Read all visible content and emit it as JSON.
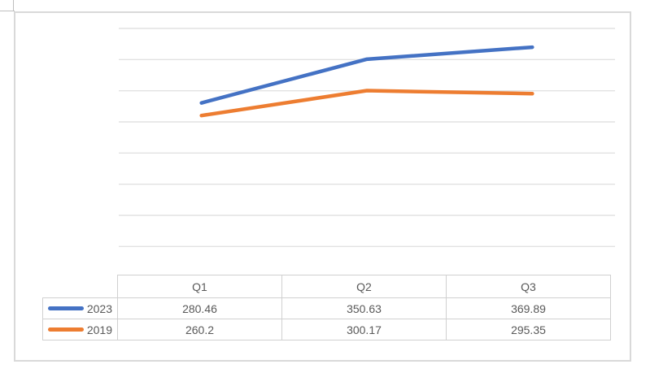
{
  "chart_data": {
    "type": "line",
    "title": "",
    "xlabel": "",
    "ylabel": "",
    "categories": [
      "Q1",
      "Q2",
      "Q3"
    ],
    "series": [
      {
        "name": "2023",
        "color": "#4472C4",
        "values": [
          280.46,
          350.63,
          369.89
        ]
      },
      {
        "name": "2019",
        "color": "#ED7D31",
        "values": [
          260.2,
          300.17,
          295.35
        ]
      }
    ],
    "ylim": [
      0,
      400
    ],
    "gridlines": {
      "orientation": "horizontal",
      "count": 8,
      "top_value": 400,
      "bottom_value": 50,
      "step": 50,
      "color": "#e2e2e2"
    },
    "axis_tick_labels_visible": false,
    "legend_position": "data-table"
  },
  "table": {
    "col_headers": [
      "Q1",
      "Q2",
      "Q3"
    ],
    "rows": [
      {
        "label": "2023",
        "swatch_color": "#4472C4",
        "values": [
          "280.46",
          "350.63",
          "369.89"
        ]
      },
      {
        "label": "2019",
        "swatch_color": "#ED7D31",
        "values": [
          "260.2",
          "300.17",
          "295.35"
        ]
      }
    ]
  },
  "colors": {
    "series_2023": "#4472C4",
    "series_2019": "#ED7D31",
    "gridline": "#e2e2e2",
    "chart_frame_border": "#d9d9d9",
    "table_border": "#d0d0d0",
    "text": "#595959"
  }
}
